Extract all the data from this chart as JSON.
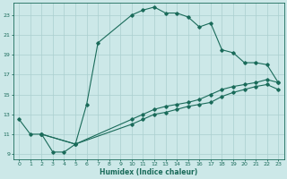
{
  "xlabel": "Humidex (Indice chaleur)",
  "xlim": [
    -0.5,
    23.5
  ],
  "ylim": [
    8.5,
    24.2
  ],
  "yticks": [
    9,
    11,
    13,
    15,
    17,
    19,
    21,
    23
  ],
  "xticks": [
    0,
    1,
    2,
    3,
    4,
    5,
    6,
    7,
    8,
    9,
    10,
    11,
    12,
    13,
    14,
    15,
    16,
    17,
    18,
    19,
    20,
    21,
    22,
    23
  ],
  "bg_color": "#cce8e8",
  "grid_color": "#aacfcf",
  "line_color": "#1a6b5a",
  "line1_x": [
    0,
    1,
    2,
    3,
    4,
    5,
    6,
    7,
    10,
    11,
    12,
    13,
    14,
    15,
    16,
    17,
    18,
    19,
    20,
    21,
    22,
    23
  ],
  "line1_y": [
    12.5,
    11.0,
    11.0,
    9.2,
    9.2,
    10.0,
    14.0,
    20.2,
    23.0,
    23.5,
    23.8,
    23.2,
    23.2,
    22.8,
    21.8,
    22.2,
    19.5,
    19.2,
    18.2,
    18.2,
    18.0,
    16.2
  ],
  "line2_x": [
    2,
    5,
    10,
    11,
    12,
    13,
    14,
    15,
    16,
    17,
    18,
    19,
    20,
    21,
    22,
    23
  ],
  "line2_y": [
    11.0,
    10.0,
    12.5,
    13.0,
    13.5,
    13.8,
    14.0,
    14.2,
    14.5,
    15.0,
    15.5,
    15.8,
    16.0,
    16.2,
    16.5,
    16.2
  ],
  "line3_x": [
    2,
    5,
    10,
    11,
    12,
    13,
    14,
    15,
    16,
    17,
    18,
    19,
    20,
    21,
    22,
    23
  ],
  "line3_y": [
    11.0,
    10.0,
    12.0,
    12.5,
    13.0,
    13.2,
    13.5,
    13.8,
    14.0,
    14.2,
    14.8,
    15.2,
    15.5,
    15.8,
    16.0,
    15.5
  ],
  "marker": "D",
  "markersize": 1.8,
  "linewidth": 0.8
}
